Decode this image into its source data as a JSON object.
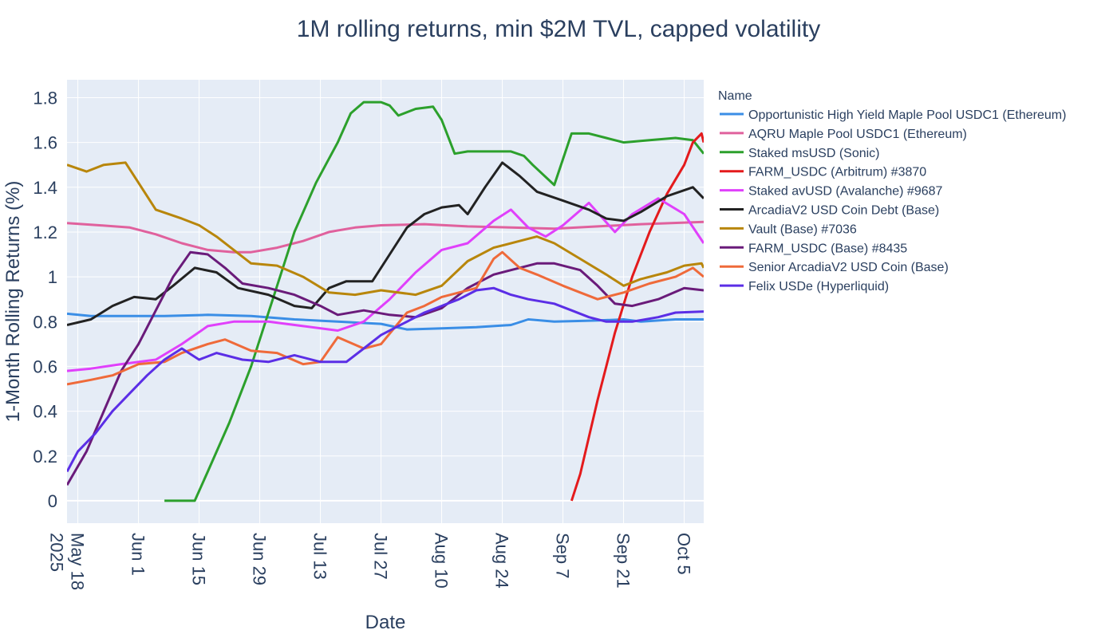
{
  "chart_data": {
    "type": "line",
    "title": "1M rolling returns, min $2M TVL, capped volatility",
    "xlabel": "Date",
    "ylabel": "1-Month Rolling Returns (%)",
    "legend_title": "Name",
    "legend_position": "right",
    "grid": true,
    "xlim": [
      -2.5,
      144.5
    ],
    "ylim": [
      -0.1,
      1.88
    ],
    "x_ticks": [
      {
        "pos": 0,
        "label": "May 18",
        "sub": "2025"
      },
      {
        "pos": 14,
        "label": "Jun 1"
      },
      {
        "pos": 28,
        "label": "Jun 15"
      },
      {
        "pos": 42,
        "label": "Jun 29"
      },
      {
        "pos": 56,
        "label": "Jul 13"
      },
      {
        "pos": 70,
        "label": "Jul 27"
      },
      {
        "pos": 84,
        "label": "Aug 10"
      },
      {
        "pos": 98,
        "label": "Aug 24"
      },
      {
        "pos": 112,
        "label": "Sep 7"
      },
      {
        "pos": 126,
        "label": "Sep 21"
      },
      {
        "pos": 140,
        "label": "Oct 5"
      }
    ],
    "y_ticks": [
      0,
      0.2,
      0.4,
      0.6,
      0.8,
      1,
      1.2,
      1.4,
      1.6,
      1.8
    ],
    "y_tick_labels": [
      "0",
      "0.2",
      "0.4",
      "0.6",
      "0.8",
      "1",
      "1.2",
      "1.4",
      "1.6",
      "1.8"
    ],
    "x_unit": "days since May 18, 2025",
    "series": [
      {
        "name": "Opportunistic High Yield Maple Pool USDC1 (Ethereum)",
        "color": "#3a8ee6",
        "points": [
          [
            -2.5,
            0.835
          ],
          [
            3,
            0.825
          ],
          [
            10,
            0.825
          ],
          [
            20,
            0.825
          ],
          [
            30,
            0.83
          ],
          [
            40,
            0.825
          ],
          [
            50,
            0.81
          ],
          [
            60,
            0.8
          ],
          [
            70,
            0.79
          ],
          [
            76,
            0.765
          ],
          [
            84,
            0.77
          ],
          [
            92,
            0.775
          ],
          [
            100,
            0.785
          ],
          [
            104,
            0.81
          ],
          [
            110,
            0.8
          ],
          [
            120,
            0.805
          ],
          [
            126,
            0.81
          ],
          [
            130,
            0.8
          ],
          [
            138,
            0.81
          ],
          [
            144.5,
            0.81
          ]
        ]
      },
      {
        "name": "AQRU Maple Pool USDC1 (Ethereum)",
        "color": "#e0619d",
        "points": [
          [
            -2.5,
            1.24
          ],
          [
            5,
            1.23
          ],
          [
            12,
            1.22
          ],
          [
            18,
            1.19
          ],
          [
            24,
            1.15
          ],
          [
            30,
            1.12
          ],
          [
            36,
            1.11
          ],
          [
            40,
            1.11
          ],
          [
            46,
            1.13
          ],
          [
            52,
            1.16
          ],
          [
            58,
            1.2
          ],
          [
            64,
            1.22
          ],
          [
            70,
            1.23
          ],
          [
            80,
            1.235
          ],
          [
            90,
            1.225
          ],
          [
            100,
            1.22
          ],
          [
            110,
            1.215
          ],
          [
            120,
            1.225
          ],
          [
            130,
            1.235
          ],
          [
            144.5,
            1.245
          ]
        ]
      },
      {
        "name": "Staked msUSD (Sonic)",
        "color": "#2ca02c",
        "points": [
          [
            20,
            0
          ],
          [
            27,
            0
          ],
          [
            30,
            0.13
          ],
          [
            35,
            0.35
          ],
          [
            40,
            0.6
          ],
          [
            45,
            0.9
          ],
          [
            50,
            1.2
          ],
          [
            55,
            1.42
          ],
          [
            60,
            1.6
          ],
          [
            63,
            1.73
          ],
          [
            66,
            1.78
          ],
          [
            70,
            1.78
          ],
          [
            72,
            1.765
          ],
          [
            74,
            1.72
          ],
          [
            78,
            1.75
          ],
          [
            82,
            1.76
          ],
          [
            84,
            1.7
          ],
          [
            87,
            1.55
          ],
          [
            90,
            1.56
          ],
          [
            100,
            1.56
          ],
          [
            103,
            1.54
          ],
          [
            105,
            1.5
          ],
          [
            110,
            1.41
          ],
          [
            114,
            1.64
          ],
          [
            118,
            1.64
          ],
          [
            122,
            1.62
          ],
          [
            126,
            1.6
          ],
          [
            132,
            1.61
          ],
          [
            138,
            1.62
          ],
          [
            142,
            1.61
          ],
          [
            144.5,
            1.55
          ]
        ]
      },
      {
        "name": "FARM_USDC (Arbitrum) #3870",
        "color": "#e41a1c",
        "points": [
          [
            114,
            0
          ],
          [
            116,
            0.12
          ],
          [
            120,
            0.45
          ],
          [
            124,
            0.75
          ],
          [
            128,
            1.0
          ],
          [
            132,
            1.2
          ],
          [
            136,
            1.37
          ],
          [
            140,
            1.5
          ],
          [
            142,
            1.6
          ],
          [
            144,
            1.64
          ],
          [
            144.5,
            1.6
          ]
        ]
      },
      {
        "name": "Staked avUSD (Avalanche) #9687",
        "color": "#e040fb",
        "points": [
          [
            -2.5,
            0.58
          ],
          [
            3,
            0.59
          ],
          [
            10,
            0.61
          ],
          [
            18,
            0.63
          ],
          [
            24,
            0.7
          ],
          [
            30,
            0.78
          ],
          [
            36,
            0.8
          ],
          [
            44,
            0.8
          ],
          [
            52,
            0.78
          ],
          [
            60,
            0.76
          ],
          [
            66,
            0.8
          ],
          [
            72,
            0.9
          ],
          [
            78,
            1.02
          ],
          [
            84,
            1.12
          ],
          [
            90,
            1.15
          ],
          [
            96,
            1.25
          ],
          [
            100,
            1.3
          ],
          [
            104,
            1.22
          ],
          [
            108,
            1.18
          ],
          [
            112,
            1.23
          ],
          [
            118,
            1.33
          ],
          [
            124,
            1.2
          ],
          [
            128,
            1.28
          ],
          [
            134,
            1.35
          ],
          [
            140,
            1.28
          ],
          [
            144.5,
            1.15
          ]
        ]
      },
      {
        "name": "ArcadiaV2 USD Coin Debt (Base)",
        "color": "#222222",
        "points": [
          [
            -2.5,
            0.785
          ],
          [
            3,
            0.81
          ],
          [
            8,
            0.87
          ],
          [
            13,
            0.91
          ],
          [
            18,
            0.9
          ],
          [
            22,
            0.96
          ],
          [
            27,
            1.04
          ],
          [
            32,
            1.02
          ],
          [
            37,
            0.95
          ],
          [
            44,
            0.92
          ],
          [
            50,
            0.87
          ],
          [
            54,
            0.86
          ],
          [
            58,
            0.95
          ],
          [
            62,
            0.98
          ],
          [
            68,
            0.98
          ],
          [
            72,
            1.1
          ],
          [
            76,
            1.22
          ],
          [
            80,
            1.28
          ],
          [
            84,
            1.31
          ],
          [
            88,
            1.32
          ],
          [
            90,
            1.28
          ],
          [
            94,
            1.4
          ],
          [
            98,
            1.51
          ],
          [
            102,
            1.45
          ],
          [
            106,
            1.38
          ],
          [
            112,
            1.34
          ],
          [
            118,
            1.3
          ],
          [
            122,
            1.26
          ],
          [
            126,
            1.25
          ],
          [
            130,
            1.29
          ],
          [
            136,
            1.36
          ],
          [
            142,
            1.4
          ],
          [
            144.5,
            1.35
          ]
        ]
      },
      {
        "name": "Vault (Base) #7036",
        "color": "#b8860b",
        "points": [
          [
            -2.5,
            1.5
          ],
          [
            2,
            1.47
          ],
          [
            6,
            1.5
          ],
          [
            11,
            1.51
          ],
          [
            14,
            1.42
          ],
          [
            18,
            1.3
          ],
          [
            24,
            1.26
          ],
          [
            28,
            1.23
          ],
          [
            32,
            1.18
          ],
          [
            36,
            1.12
          ],
          [
            40,
            1.06
          ],
          [
            46,
            1.05
          ],
          [
            52,
            1.0
          ],
          [
            58,
            0.93
          ],
          [
            64,
            0.92
          ],
          [
            70,
            0.94
          ],
          [
            78,
            0.92
          ],
          [
            84,
            0.96
          ],
          [
            90,
            1.07
          ],
          [
            96,
            1.13
          ],
          [
            102,
            1.16
          ],
          [
            106,
            1.18
          ],
          [
            110,
            1.15
          ],
          [
            116,
            1.08
          ],
          [
            122,
            1.01
          ],
          [
            126,
            0.96
          ],
          [
            130,
            0.99
          ],
          [
            136,
            1.02
          ],
          [
            140,
            1.05
          ],
          [
            144,
            1.06
          ],
          [
            144.5,
            1.04
          ]
        ]
      },
      {
        "name": "FARM_USDC (Base) #8435",
        "color": "#6a1b7a",
        "points": [
          [
            -2.5,
            0.07
          ],
          [
            2,
            0.22
          ],
          [
            6,
            0.4
          ],
          [
            10,
            0.58
          ],
          [
            14,
            0.7
          ],
          [
            18,
            0.85
          ],
          [
            22,
            1.0
          ],
          [
            26,
            1.11
          ],
          [
            30,
            1.1
          ],
          [
            34,
            1.04
          ],
          [
            38,
            0.97
          ],
          [
            44,
            0.95
          ],
          [
            50,
            0.92
          ],
          [
            56,
            0.87
          ],
          [
            60,
            0.83
          ],
          [
            66,
            0.85
          ],
          [
            72,
            0.83
          ],
          [
            78,
            0.82
          ],
          [
            84,
            0.86
          ],
          [
            90,
            0.95
          ],
          [
            96,
            1.01
          ],
          [
            100,
            1.03
          ],
          [
            106,
            1.06
          ],
          [
            110,
            1.06
          ],
          [
            116,
            1.03
          ],
          [
            120,
            0.96
          ],
          [
            124,
            0.88
          ],
          [
            128,
            0.87
          ],
          [
            134,
            0.9
          ],
          [
            140,
            0.95
          ],
          [
            144.5,
            0.94
          ]
        ]
      },
      {
        "name": "Senior ArcadiaV2 USD Coin (Base)",
        "color": "#ef6a3a",
        "points": [
          [
            -2.5,
            0.52
          ],
          [
            3,
            0.54
          ],
          [
            8,
            0.56
          ],
          [
            14,
            0.61
          ],
          [
            20,
            0.62
          ],
          [
            24,
            0.66
          ],
          [
            30,
            0.7
          ],
          [
            34,
            0.72
          ],
          [
            40,
            0.67
          ],
          [
            46,
            0.66
          ],
          [
            52,
            0.61
          ],
          [
            56,
            0.62
          ],
          [
            60,
            0.73
          ],
          [
            66,
            0.68
          ],
          [
            70,
            0.7
          ],
          [
            76,
            0.84
          ],
          [
            80,
            0.87
          ],
          [
            84,
            0.91
          ],
          [
            88,
            0.93
          ],
          [
            92,
            0.95
          ],
          [
            96,
            1.08
          ],
          [
            98,
            1.11
          ],
          [
            102,
            1.04
          ],
          [
            106,
            1.01
          ],
          [
            112,
            0.96
          ],
          [
            116,
            0.93
          ],
          [
            120,
            0.9
          ],
          [
            126,
            0.93
          ],
          [
            132,
            0.97
          ],
          [
            138,
            1.0
          ],
          [
            142,
            1.04
          ],
          [
            144.5,
            1.0
          ]
        ]
      },
      {
        "name": "Felix USDe (Hyperliquid)",
        "color": "#5b2ee6",
        "points": [
          [
            -2.5,
            0.13
          ],
          [
            0,
            0.22
          ],
          [
            4,
            0.3
          ],
          [
            8,
            0.4
          ],
          [
            12,
            0.48
          ],
          [
            16,
            0.56
          ],
          [
            20,
            0.63
          ],
          [
            24,
            0.68
          ],
          [
            28,
            0.63
          ],
          [
            32,
            0.66
          ],
          [
            38,
            0.63
          ],
          [
            44,
            0.62
          ],
          [
            50,
            0.65
          ],
          [
            56,
            0.62
          ],
          [
            62,
            0.62
          ],
          [
            66,
            0.68
          ],
          [
            70,
            0.74
          ],
          [
            76,
            0.8
          ],
          [
            80,
            0.84
          ],
          [
            84,
            0.87
          ],
          [
            88,
            0.9
          ],
          [
            92,
            0.94
          ],
          [
            96,
            0.95
          ],
          [
            100,
            0.92
          ],
          [
            104,
            0.9
          ],
          [
            110,
            0.88
          ],
          [
            114,
            0.85
          ],
          [
            118,
            0.82
          ],
          [
            122,
            0.8
          ],
          [
            128,
            0.8
          ],
          [
            134,
            0.82
          ],
          [
            138,
            0.84
          ],
          [
            144.5,
            0.845
          ]
        ]
      }
    ]
  }
}
